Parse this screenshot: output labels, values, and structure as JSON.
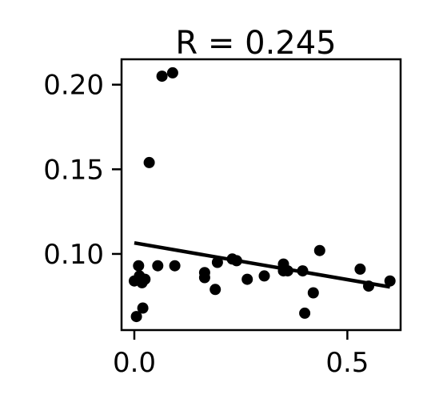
{
  "chart_data": {
    "type": "scatter",
    "title": "R = 0.245",
    "xlabel": "",
    "ylabel": "",
    "xlim": [
      -0.03,
      0.625
    ],
    "ylim": [
      0.055,
      0.215
    ],
    "xticks": [
      0.0,
      0.5
    ],
    "xtick_labels": [
      "0.0",
      "0.5"
    ],
    "yticks": [
      0.1,
      0.15,
      0.2
    ],
    "ytick_labels": [
      "0.10",
      "0.15",
      "0.20"
    ],
    "grid": false,
    "legend": "none",
    "colors": {
      "points": "#000000",
      "fit_line": "#000000"
    },
    "series": [
      {
        "x": [
          0.0,
          0.005,
          0.01,
          0.012,
          0.015,
          0.018,
          0.02,
          0.025,
          0.035,
          0.055,
          0.065,
          0.09,
          0.095,
          0.165,
          0.165,
          0.19,
          0.195,
          0.23,
          0.24,
          0.265,
          0.305,
          0.35,
          0.35,
          0.36,
          0.395,
          0.4,
          0.42,
          0.435,
          0.53,
          0.55,
          0.6
        ],
        "y": [
          0.084,
          0.063,
          0.093,
          0.087,
          0.085,
          0.083,
          0.068,
          0.085,
          0.154,
          0.093,
          0.205,
          0.207,
          0.093,
          0.089,
          0.086,
          0.079,
          0.095,
          0.097,
          0.096,
          0.085,
          0.087,
          0.094,
          0.09,
          0.09,
          0.09,
          0.065,
          0.077,
          0.102,
          0.091,
          0.081,
          0.084
        ]
      }
    ],
    "fit_line": {
      "x": [
        0.0,
        0.6
      ],
      "y": [
        0.1065,
        0.0805
      ]
    }
  }
}
